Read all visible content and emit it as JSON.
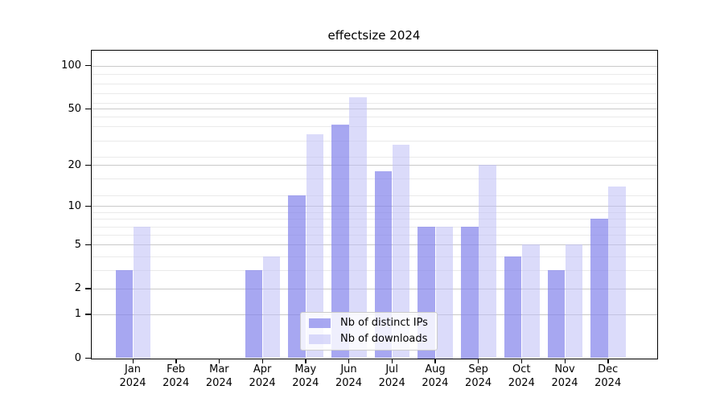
{
  "title": "effectsize 2024",
  "chart_data": {
    "type": "bar",
    "title": "effectsize 2024",
    "categories": [
      "Jan 2024",
      "Feb 2024",
      "Mar 2024",
      "Apr 2024",
      "May 2024",
      "Jun 2024",
      "Jul 2024",
      "Aug 2024",
      "Sep 2024",
      "Oct 2024",
      "Nov 2024",
      "Dec 2024"
    ],
    "series": [
      {
        "name": "Nb of distinct IPs",
        "color": "#8585eb",
        "fill_alpha": 0.72,
        "values": [
          3,
          0,
          0,
          3,
          12,
          39,
          18,
          7,
          7,
          4,
          3,
          8
        ]
      },
      {
        "name": "Nb of downloads",
        "color": "#bebef6",
        "fill_alpha": 0.55,
        "values": [
          7,
          0,
          0,
          4,
          33,
          60,
          28,
          7,
          20,
          5,
          5,
          14
        ]
      }
    ],
    "y_axis": {
      "scale": "log(1+x)",
      "ticks": [
        100,
        50,
        20,
        10,
        5,
        2,
        1,
        0
      ],
      "range": [
        0,
        120
      ]
    },
    "x_axis": {
      "label_format": "month over year"
    },
    "grid": "on",
    "legend": {
      "position": "bottom-center",
      "entries": [
        "Nb of distinct IPs",
        "Nb of downloads"
      ]
    }
  }
}
